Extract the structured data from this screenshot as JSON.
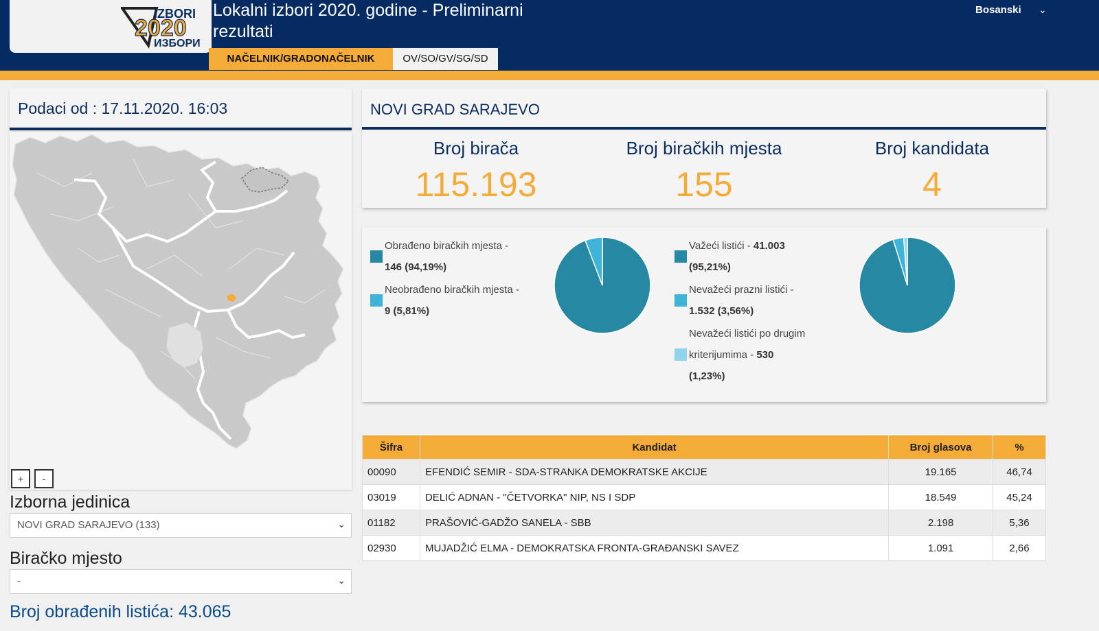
{
  "header": {
    "title": "Lokalni izbori 2020. godine - Preliminarni rezultati",
    "language": "Bosanski",
    "logo": {
      "line1": "IZBORI",
      "year": "2020",
      "line2": "ИЗБОРИ"
    },
    "tabs": [
      {
        "label": "NAČELNIK/GRADONAČELNIK",
        "active": true
      },
      {
        "label": "OV/SO/GV/SG/SD",
        "active": false
      }
    ]
  },
  "left": {
    "date_label": "Podaci od : 17.11.2020. 16:03",
    "zoom_in": "+",
    "zoom_out": "-",
    "unit_label": "Izborna jedinica",
    "unit_value": "NOVI GRAD SARAJEVO (133)",
    "station_label": "Biračko mjesto",
    "station_value": "-",
    "processed_label": "Broj obrađenih listića: 43.065"
  },
  "municipality": {
    "name": "NOVI GRAD SARAJEVO",
    "stats": [
      {
        "label": "Broj birača",
        "value": "115.193"
      },
      {
        "label": "Broj biračkih mjesta",
        "value": "155"
      },
      {
        "label": "Broj kandidata",
        "value": "4"
      }
    ]
  },
  "chart_data": [
    {
      "type": "pie",
      "labels": [
        "Obrađeno biračkih mjesta",
        "Neobrađeno biračkih mjesta"
      ],
      "values": [
        146,
        9
      ],
      "percent": [
        94.19,
        5.81
      ],
      "colors": [
        "#2688a3",
        "#3fb4d8"
      ],
      "legend": [
        {
          "text": "Obrađeno biračkih mjesta -",
          "value": "146 (94,19%)"
        },
        {
          "text": "Neobrađeno biračkih mjesta -",
          "value": "9 (5,81%)"
        }
      ]
    },
    {
      "type": "pie",
      "labels": [
        "Važeći listići",
        "Nevažeći prazni listići",
        "Nevažeći listići po drugim kriterijumima"
      ],
      "values": [
        41003,
        1532,
        530
      ],
      "percent": [
        95.21,
        3.56,
        1.23
      ],
      "colors": [
        "#2688a3",
        "#3fb4d8",
        "#8fd3ec"
      ],
      "legend": [
        {
          "text": "Važeći listići - ",
          "value": "41.003",
          "value2": "(95,21%)"
        },
        {
          "text": "Nevažeći prazni listići -",
          "value": "1.532 (3,56%)"
        },
        {
          "text": "Nevažeći listići po drugim",
          "text2": "kriterijumima - ",
          "value": "530",
          "value2": "(1,23%)"
        }
      ]
    }
  ],
  "table": {
    "headers": [
      "Šifra",
      "Kandidat",
      "Broj glasova",
      "%"
    ],
    "rows": [
      {
        "code": "00090",
        "name": "EFENDIĆ SEMIR - SDA-STRANKA DEMOKRATSKE AKCIJE",
        "votes": "19.165",
        "pct": "46,74"
      },
      {
        "code": "03019",
        "name": "DELIĆ ADNAN - \"ČETVORKA\" NIP, NS I SDP",
        "votes": "18.549",
        "pct": "45,24"
      },
      {
        "code": "01182",
        "name": "PRAŠOVIĆ-GADŽO SANELA - SBB",
        "votes": "2.198",
        "pct": "5,36"
      },
      {
        "code": "02930",
        "name": "MUJADŽIĆ ELMA - DEMOKRATSKA FRONTA-GRAĐANSKI SAVEZ",
        "votes": "1.091",
        "pct": "2,66"
      }
    ]
  }
}
